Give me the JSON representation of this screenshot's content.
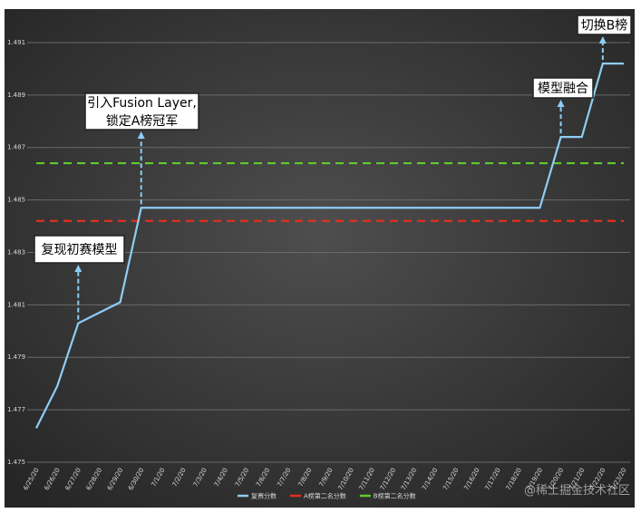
{
  "chart_data": {
    "type": "line",
    "categories": [
      "6/25/20",
      "6/26/20",
      "6/27/20",
      "6/28/20",
      "6/29/20",
      "6/30/20",
      "7/1/20",
      "7/2/20",
      "7/3/20",
      "7/4/20",
      "7/5/20",
      "7/6/20",
      "7/7/20",
      "7/8/20",
      "7/9/20",
      "7/10/20",
      "7/11/20",
      "7/12/20",
      "7/13/20",
      "7/14/20",
      "7/15/20",
      "7/16/20",
      "7/17/20",
      "7/18/20",
      "7/19/20",
      "7/20/20",
      "7/21/20",
      "7/22/20",
      "7/23/20"
    ],
    "series": [
      {
        "name": "复赛分数",
        "color": "#8ecdf5",
        "dash": false,
        "values": [
          1.4763,
          1.4779,
          1.4803,
          1.4807,
          1.4811,
          1.4847,
          1.4847,
          1.4847,
          1.4847,
          1.4847,
          1.4847,
          1.4847,
          1.4847,
          1.4847,
          1.4847,
          1.4847,
          1.4847,
          1.4847,
          1.4847,
          1.4847,
          1.4847,
          1.4847,
          1.4847,
          1.4847,
          1.4847,
          1.4874,
          1.4874,
          1.4902,
          1.4902
        ]
      },
      {
        "name": "A榜第二名分数",
        "color": "#e0301e",
        "dash": true,
        "values": [
          1.4842,
          1.4842,
          1.4842,
          1.4842,
          1.4842,
          1.4842,
          1.4842,
          1.4842,
          1.4842,
          1.4842,
          1.4842,
          1.4842,
          1.4842,
          1.4842,
          1.4842,
          1.4842,
          1.4842,
          1.4842,
          1.4842,
          1.4842,
          1.4842,
          1.4842,
          1.4842,
          1.4842,
          1.4842,
          1.4842,
          1.4842,
          1.4842,
          1.4842
        ]
      },
      {
        "name": "B榜第二名分数",
        "color": "#5ecb2e",
        "dash": true,
        "values": [
          1.4864,
          1.4864,
          1.4864,
          1.4864,
          1.4864,
          1.4864,
          1.4864,
          1.4864,
          1.4864,
          1.4864,
          1.4864,
          1.4864,
          1.4864,
          1.4864,
          1.4864,
          1.4864,
          1.4864,
          1.4864,
          1.4864,
          1.4864,
          1.4864,
          1.4864,
          1.4864,
          1.4864,
          1.4864,
          1.4864,
          1.4864,
          1.4864,
          1.4864
        ]
      }
    ],
    "ylim": [
      1.475,
      1.492
    ],
    "yticks": [
      1.475,
      1.477,
      1.479,
      1.481,
      1.483,
      1.485,
      1.487,
      1.489,
      1.491
    ],
    "grid": true,
    "legend": "bottom",
    "annotations": [
      {
        "lines": [
          "复现初赛模型"
        ]
      },
      {
        "lines": [
          "引入Fusion Layer,",
          "锁定A榜冠军"
        ]
      },
      {
        "lines": [
          "模型融合"
        ]
      },
      {
        "lines": [
          "切换B榜"
        ]
      }
    ],
    "watermark": "@稀土掘金技术社区"
  }
}
